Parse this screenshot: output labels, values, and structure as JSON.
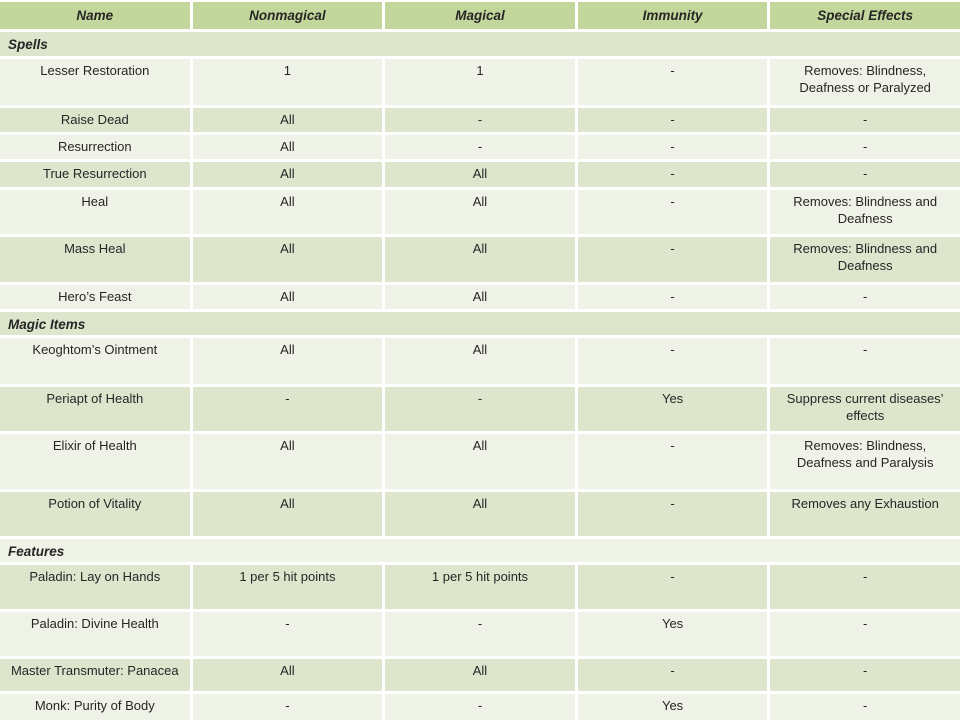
{
  "table": {
    "columns": [
      "Name",
      "Nonmagical",
      "Magical",
      "Immunity",
      "Special Effects"
    ],
    "rows": [
      {
        "type": "section",
        "label": "Spells",
        "h": 24
      },
      {
        "type": "data",
        "h": 46,
        "cells": [
          "Lesser Restoration",
          "1",
          "1",
          "-",
          "Removes: Blindness, Deafness or Paralyzed"
        ]
      },
      {
        "type": "data",
        "h": 24,
        "cells": [
          "Raise Dead",
          "All",
          "-",
          "-",
          "-"
        ]
      },
      {
        "type": "data",
        "h": 24,
        "cells": [
          "Resurrection",
          "All",
          "-",
          "-",
          "-"
        ]
      },
      {
        "type": "data",
        "h": 25,
        "cells": [
          "True Resurrection",
          "All",
          "All",
          "-",
          "-"
        ]
      },
      {
        "type": "data",
        "h": 44,
        "cells": [
          "Heal",
          "All",
          "All",
          "-",
          "Removes: Blindness and Deafness"
        ]
      },
      {
        "type": "data",
        "h": 45,
        "cells": [
          "Mass Heal",
          "All",
          "All",
          "-",
          "Removes: Blindness and Deafness"
        ]
      },
      {
        "type": "data",
        "h": 24,
        "cells": [
          "Hero’s Feast",
          "All",
          "All",
          "-",
          "-"
        ]
      },
      {
        "type": "section",
        "label": "Magic Items",
        "h": 23
      },
      {
        "type": "data",
        "h": 46,
        "cells": [
          "Keoghtom’s Ointment",
          "All",
          "All",
          "-",
          "-"
        ]
      },
      {
        "type": "data",
        "h": 44,
        "cells": [
          "Periapt of Health",
          "-",
          "-",
          "Yes",
          "Suppress current diseases’ effects"
        ]
      },
      {
        "type": "data",
        "h": 55,
        "cells": [
          "Elixir of Health",
          "All",
          "All",
          "-",
          "Removes: Blindness, Deafness and Paralysis"
        ]
      },
      {
        "type": "data",
        "h": 44,
        "cells": [
          "Potion of Vitality",
          "All",
          "All",
          "-",
          "Removes any Exhaustion"
        ]
      },
      {
        "type": "section",
        "label": "Features",
        "h": 23
      },
      {
        "type": "data",
        "h": 44,
        "cells": [
          "Paladin: Lay on Hands",
          "1 per 5 hit points",
          "1 per 5 hit points",
          "-",
          "-"
        ]
      },
      {
        "type": "data",
        "h": 44,
        "cells": [
          "Paladin: Divine Health",
          "-",
          "-",
          "Yes",
          "-"
        ]
      },
      {
        "type": "data",
        "h": 32,
        "cells": [
          "Master Transmuter: Panacea",
          "All",
          "All",
          "-",
          "-"
        ]
      },
      {
        "type": "data",
        "h": 30,
        "cells": [
          "Monk: Purity of Body",
          "-",
          "-",
          "Yes",
          "-"
        ]
      }
    ],
    "colors": {
      "header_bg": "#c3d69b",
      "band_light": "#eff2e6",
      "band_dark": "#dde5cc",
      "gap": "#ffffff",
      "text": "#262626"
    }
  }
}
